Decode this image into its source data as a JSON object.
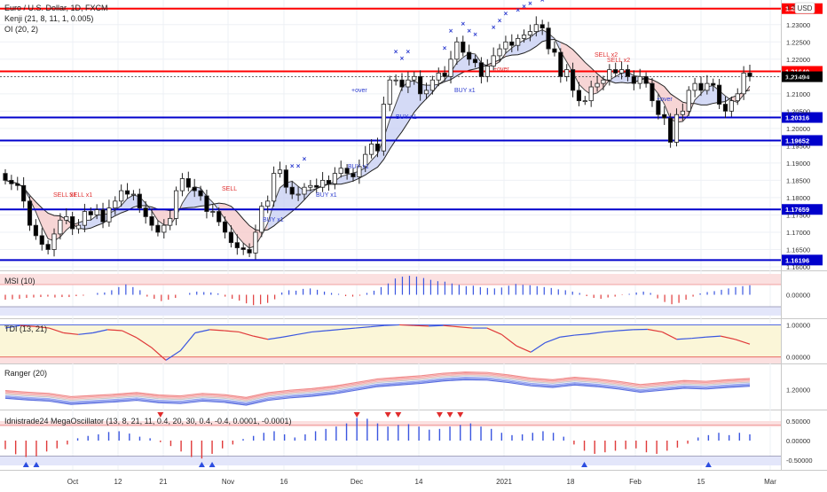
{
  "header": {
    "symbol": "Euro / U.S. Dollar, 1D, FXCM",
    "currency": "USD",
    "indicator1": "Kenji (21, 8, 11, 1, 0.005)",
    "indicator2": "OI (20, 2)"
  },
  "colors": {
    "up": "#3b3b3b",
    "down": "#000000",
    "resistance": "#ff0000",
    "support": "#0000cc",
    "blue_band": "#c5cdf3",
    "pink_band": "#f4c7c7",
    "price_tag": "#000000",
    "buy_text": "#2c3ccf",
    "sell_text": "#e03030"
  },
  "chart_data": [
    {
      "type": "line",
      "name": "main-price",
      "ylim": [
        1.16,
        1.2366
      ],
      "y_axis_labels": [
        "1.23500",
        "1.23000",
        "1.22500",
        "1.22000",
        "1.21500",
        "1.21000",
        "1.20500",
        "1.20000",
        "1.19500",
        "1.19000",
        "1.18500",
        "1.18000",
        "1.17500",
        "1.17000",
        "1.16500",
        "1.16000"
      ],
      "y_axis_values": [
        1.235,
        1.23,
        1.225,
        1.22,
        1.215,
        1.21,
        1.205,
        1.2,
        1.195,
        1.19,
        1.185,
        1.18,
        1.175,
        1.17,
        1.165,
        1.16
      ],
      "x_axis_labels": [
        "Oct",
        "12",
        "21",
        "Nov",
        "16",
        "Dec",
        "14",
        "2021",
        "18",
        "Feb",
        "15",
        "Mar"
      ],
      "horizontal_levels": [
        {
          "value": 1.23462,
          "label": "1.23462",
          "kind": "resistance"
        },
        {
          "value": 1.21649,
          "label": "1.21649",
          "kind": "resistance"
        },
        {
          "value": 1.21494,
          "label": "1.21494",
          "kind": "last"
        },
        {
          "value": 1.20316,
          "label": "1.20316",
          "kind": "support"
        },
        {
          "value": 1.19652,
          "label": "1.19652",
          "kind": "support"
        },
        {
          "value": 1.17659,
          "label": "1.17659",
          "kind": "support"
        },
        {
          "value": 1.16196,
          "label": "1.16196",
          "kind": "support"
        }
      ],
      "close": [
        1.185,
        1.184,
        1.1835,
        1.179,
        1.172,
        1.169,
        1.1665,
        1.165,
        1.1695,
        1.1735,
        1.1745,
        1.171,
        1.172,
        1.176,
        1.175,
        1.1765,
        1.173,
        1.177,
        1.179,
        1.182,
        1.181,
        1.181,
        1.177,
        1.1745,
        1.172,
        1.17,
        1.172,
        1.174,
        1.182,
        1.1855,
        1.183,
        1.182,
        1.1805,
        1.176,
        1.176,
        1.173,
        1.17,
        1.167,
        1.1655,
        1.165,
        1.164,
        1.17,
        1.1775,
        1.179,
        1.187,
        1.188,
        1.183,
        1.181,
        1.181,
        1.183,
        1.1835,
        1.183,
        1.185,
        1.184,
        1.187,
        1.1885,
        1.187,
        1.186,
        1.189,
        1.1925,
        1.1955,
        1.1935,
        1.207,
        1.214,
        1.214,
        1.212,
        1.214,
        1.215,
        1.21,
        1.211,
        1.214,
        1.216,
        1.215,
        1.22,
        1.225,
        1.222,
        1.22,
        1.219,
        1.215,
        1.218,
        1.221,
        1.223,
        1.225,
        1.224,
        1.226,
        1.227,
        1.228,
        1.23,
        1.229,
        1.223,
        1.222,
        1.215,
        1.217,
        1.211,
        1.208,
        1.208,
        1.212,
        1.213,
        1.214,
        1.217,
        1.216,
        1.217,
        1.215,
        1.213,
        1.215,
        1.213,
        1.208,
        1.204,
        1.203,
        1.196,
        1.204,
        1.205,
        1.211,
        1.213,
        1.211,
        1.213,
        1.2125,
        1.207,
        1.205,
        1.208,
        1.21,
        1.216,
        1.215
      ]
    },
    {
      "type": "bar",
      "name": "MSI (10)",
      "ylim": [
        -1.0,
        1.0
      ],
      "y_axis_labels": [
        "0.00000"
      ],
      "y_axis_values": [
        0.0
      ],
      "values": [
        -0.22,
        -0.2,
        -0.18,
        -0.14,
        -0.12,
        -0.1,
        -0.08,
        -0.12,
        -0.1,
        -0.1,
        -0.06,
        -0.04,
        0,
        0.08,
        0.1,
        0.2,
        0.34,
        0.46,
        0.34,
        0.2,
        -0.08,
        -0.18,
        -0.28,
        -0.22,
        -0.14,
        0,
        0.08,
        0.14,
        0.12,
        0.1,
        0.06,
        -0.08,
        -0.18,
        -0.26,
        -0.38,
        -0.46,
        -0.42,
        -0.36,
        -0.2,
        0.1,
        0.2,
        0.18,
        0.26,
        0.28,
        0.22,
        0.14,
        0.08,
        0.04,
        -0.06,
        -0.08,
        -0.04,
        0.08,
        0.18,
        0.34,
        0.5,
        0.72,
        0.8,
        0.84,
        0.8,
        0.74,
        0.66,
        0.6,
        0.58,
        0.5,
        0.44,
        0.38,
        0.4,
        0.34,
        0.3,
        0.28,
        0.32,
        0.4,
        0.48,
        0.44,
        0.42,
        0.38,
        0.34,
        0.3,
        0.24,
        0.2,
        0.14,
        0.08,
        -0.06,
        -0.14,
        -0.18,
        -0.12,
        -0.08,
        -0.02,
        0.04,
        0.1,
        0.14,
        0.08,
        -0.16,
        -0.32,
        -0.42,
        -0.36,
        -0.22,
        -0.08,
        0.06,
        0.12,
        0.16,
        0.22,
        0.28,
        0.34,
        0.38,
        0.42
      ]
    },
    {
      "type": "line",
      "name": "TDI (13, 21)",
      "ylim": [
        -0.2,
        1.15
      ],
      "y_axis_labels": [
        "1.00000",
        "0.00000"
      ],
      "y_axis_values": [
        1.0,
        0.0
      ],
      "values": [
        0.9,
        0.98,
        0.95,
        0.9,
        0.75,
        0.7,
        0.75,
        0.85,
        0.82,
        0.6,
        0.3,
        -0.1,
        0.2,
        0.75,
        0.85,
        0.82,
        0.78,
        0.65,
        0.55,
        0.62,
        0.7,
        0.78,
        0.82,
        0.86,
        0.9,
        0.94,
        0.98,
        1.0,
        0.98,
        0.96,
        0.98,
        0.94,
        0.9,
        0.9,
        0.7,
        0.35,
        0.15,
        0.45,
        0.62,
        0.68,
        0.72,
        0.78,
        0.82,
        0.85,
        0.86,
        0.78,
        0.55,
        0.58,
        0.62,
        0.65,
        0.55,
        0.4
      ]
    },
    {
      "type": "line",
      "name": "Ranger (20)",
      "ylim": [
        1.15,
        1.26
      ],
      "y_axis_labels": [
        "1.20000"
      ],
      "y_axis_values": [
        1.2
      ],
      "values": [
        1.185,
        1.181,
        1.178,
        1.17,
        1.173,
        1.176,
        1.18,
        1.174,
        1.172,
        1.178,
        1.175,
        1.168,
        1.18,
        1.186,
        1.19,
        1.196,
        1.205,
        1.214,
        1.218,
        1.222,
        1.228,
        1.231,
        1.23,
        1.224,
        1.216,
        1.212,
        1.218,
        1.214,
        1.208,
        1.2,
        1.205,
        1.21,
        1.208,
        1.212,
        1.215
      ]
    },
    {
      "type": "bar",
      "name": "Idnistrade24 MegaOscillator (13, 8, 21, 11, 0.4, 20, 30, 0.4, -0.4, 0.0001, -0.0001)",
      "ylim": [
        -0.75,
        0.75
      ],
      "y_axis_labels": [
        "0.50000",
        "0.00000",
        "-0.50000"
      ],
      "y_axis_values": [
        0.5,
        0.0,
        -0.5
      ],
      "values": [
        -0.22,
        -0.35,
        -0.42,
        -0.4,
        -0.28,
        -0.2,
        -0.1,
        0.06,
        0.12,
        0.16,
        0.22,
        0.24,
        0.18,
        0.1,
        0.06,
        -0.04,
        -0.14,
        -0.28,
        -0.42,
        -0.46,
        -0.34,
        -0.2,
        -0.1,
        0.04,
        0.12,
        0.2,
        0.24,
        0.16,
        0.08,
        0.16,
        0.24,
        0.3,
        0.36,
        0.44,
        0.58,
        0.56,
        0.44,
        0.36,
        0.4,
        0.42,
        0.36,
        0.28,
        0.3,
        0.36,
        0.4,
        0.44,
        0.36,
        0.3,
        0.2,
        0.14,
        0.16,
        0.2,
        0.24,
        0.2,
        0.1,
        -0.1,
        -0.26,
        -0.34,
        -0.3,
        -0.26,
        -0.22,
        -0.2,
        -0.3,
        -0.34,
        -0.26,
        -0.18,
        -0.08,
        0.08,
        0.14,
        0.2,
        0.14,
        0.2,
        0.16
      ]
    }
  ],
  "pane_labels": {
    "msi": "MSI (10)",
    "tdi": "TDI (13, 21)",
    "ranger": "Ranger (20)",
    "mega": "Idnistrade24 MegaOscillator (13, 8, 21, 11, 0.4, 20, 30, 0.4, -0.4, 0.0001, -0.0001)"
  },
  "annotations": [
    {
      "text": "SELL x1",
      "kind": "sell"
    },
    {
      "text": "SELL x1",
      "kind": "sell"
    },
    {
      "text": "SELL",
      "kind": "sell"
    },
    {
      "text": "BUY x1",
      "kind": "buy"
    },
    {
      "text": "BUY x1",
      "kind": "buy"
    },
    {
      "text": "BUY x1",
      "kind": "buy"
    },
    {
      "text": "BUY x1",
      "kind": "buy"
    },
    {
      "text": "BUY x1",
      "kind": "buy"
    },
    {
      "text": "SELL x2",
      "kind": "sell"
    },
    {
      "text": "SELL x2",
      "kind": "sell"
    },
    {
      "text": "+over",
      "kind": "buy"
    },
    {
      "text": "+over",
      "kind": "sell"
    },
    {
      "text": "+over",
      "kind": "buy"
    }
  ]
}
